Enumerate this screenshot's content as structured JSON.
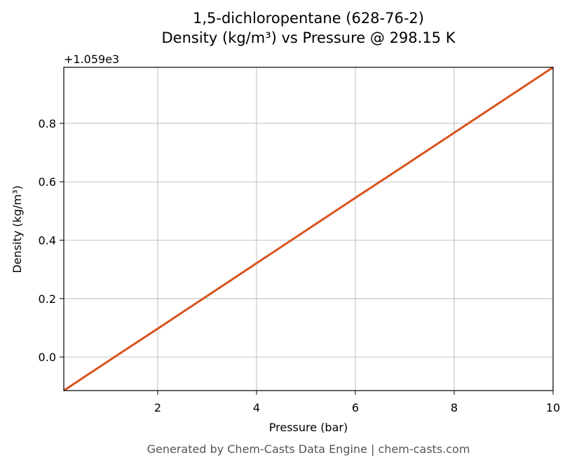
{
  "chart_data": {
    "type": "line",
    "title": "1,5-dichloropentane (628-76-2)",
    "subtitle": "Density (kg/m³) vs Pressure @ 298.15 K",
    "x_label": "Pressure (bar)",
    "y_label": "Density (kg/m³)",
    "y_offset_label": "+1.059e3",
    "footer": "Generated by Chem-Casts Data Engine | chem-casts.com",
    "x": [
      0.1,
      1,
      2,
      3,
      4,
      5,
      6,
      7,
      8,
      9,
      10
    ],
    "series": [
      {
        "name": "Density",
        "color": "#d9531e",
        "values": [
          -0.115,
          -0.014,
          0.097,
          0.209,
          0.321,
          0.433,
          0.545,
          0.656,
          0.768,
          0.88,
          0.992
        ]
      }
    ],
    "xlim": [
      0.1,
      10
    ],
    "ylim": [
      -0.115,
      0.992
    ],
    "xticks": [
      2,
      4,
      6,
      8,
      10
    ],
    "yticks": [
      {
        "value": 0,
        "label": "0.0"
      },
      0.2,
      0.4,
      0.6,
      0.8
    ],
    "grid": true
  }
}
